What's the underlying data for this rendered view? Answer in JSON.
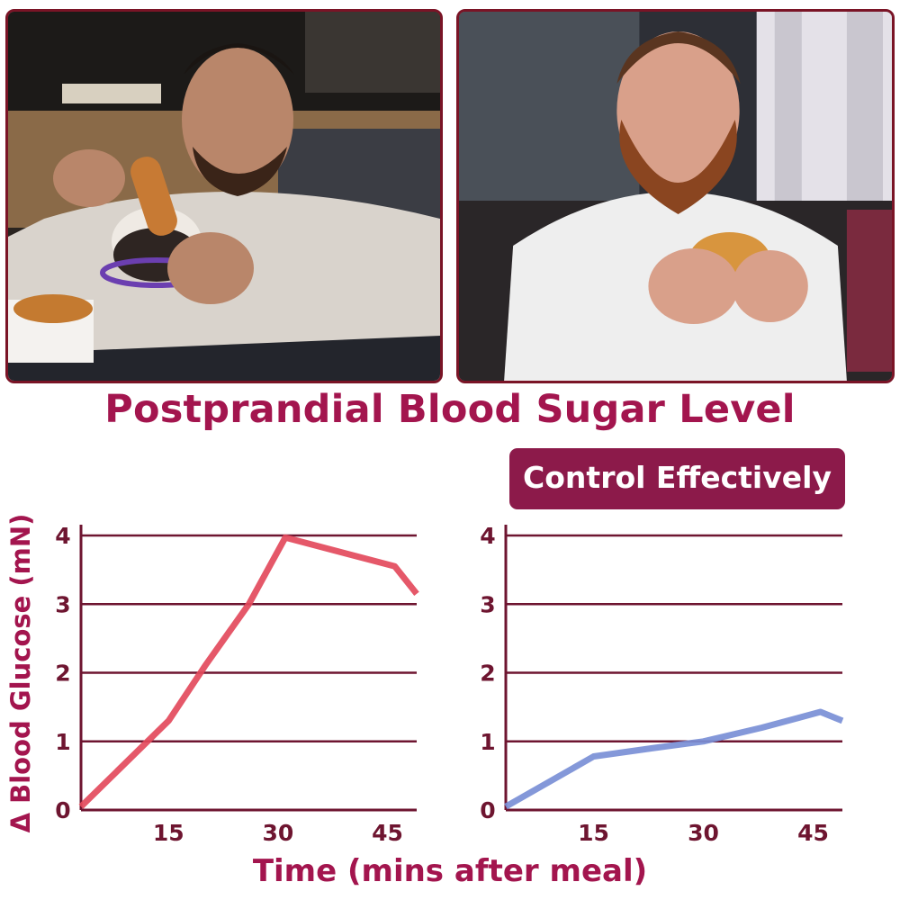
{
  "title": "Postprandial Blood Sugar Level",
  "badge": "Control Effectively",
  "colors": {
    "accent": "#a3154e",
    "badge_bg": "#8c1a4a",
    "grid": "#6e1530",
    "before_line": "#e34a5c",
    "after_line": "#7a8fd6",
    "frame": "#7a1426"
  },
  "photos": [
    {
      "name": "man-eating-cake-on-couch"
    },
    {
      "name": "bearded-man-eating-pastry"
    }
  ],
  "chart_data": [
    {
      "type": "line",
      "xlabel": "Time (mins after meal)",
      "ylabel": "Δ Blood Glucose (mN)",
      "x_ticks": [
        15,
        30,
        45
      ],
      "y_ticks": [
        0,
        1,
        2,
        3,
        4
      ],
      "xlim": [
        3,
        49
      ],
      "ylim": [
        0,
        4
      ],
      "grid": true,
      "series": [
        {
          "x": [
            3,
            15,
            20,
            26,
            31,
            46,
            49
          ],
          "y": [
            0.05,
            1.3,
            2.1,
            3.0,
            3.97,
            3.55,
            3.15
          ]
        }
      ]
    },
    {
      "type": "line",
      "xlabel": "Time (mins after meal)",
      "ylabel": "",
      "x_ticks": [
        15,
        30,
        45
      ],
      "y_ticks": [
        0,
        1,
        2,
        3,
        4
      ],
      "xlim": [
        3,
        49
      ],
      "ylim": [
        0,
        4
      ],
      "grid": true,
      "series": [
        {
          "x": [
            3,
            15,
            23,
            30,
            38,
            46,
            49
          ],
          "y": [
            0.05,
            0.78,
            0.9,
            1.0,
            1.2,
            1.43,
            1.3
          ]
        }
      ]
    }
  ]
}
